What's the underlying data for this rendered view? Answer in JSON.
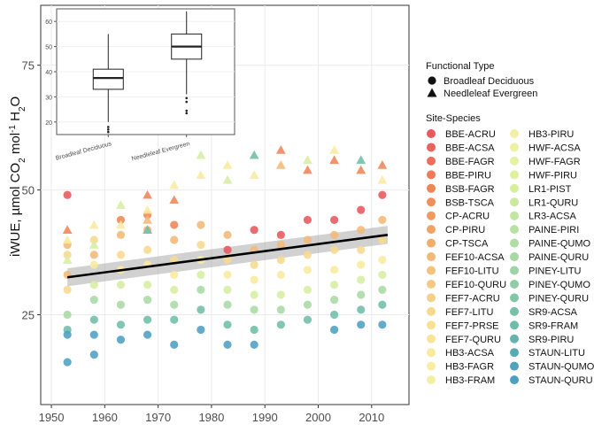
{
  "chart_data": [
    {
      "type": "scatter",
      "title": "",
      "xlabel": "",
      "ylabel_main": "iWUE, µmol CO",
      "ylabel_sub1": "2",
      "ylabel_mid": " mol",
      "ylabel_sup": "-1",
      "ylabel_end": " H",
      "ylabel_sub2": "2",
      "ylabel_tail": "O",
      "xlim": [
        1948,
        2017
      ],
      "ylim": [
        7,
        87
      ],
      "x_ticks": [
        1950,
        1960,
        1970,
        1980,
        1990,
        2000,
        2010
      ],
      "y_ticks": [
        25,
        50,
        75
      ],
      "trend_line": {
        "x": [
          1953,
          2013
        ],
        "y": [
          32.5,
          41.0
        ],
        "ci": 1.8
      },
      "series": [
        {
          "name": "Broadleaf Deciduous",
          "shape": "circle",
          "points": [
            [
              1953,
              49,
              "#e8585c"
            ],
            [
              1953,
              39,
              "#f3b877"
            ],
            [
              1953,
              37,
              "#f7da8f"
            ],
            [
              1953,
              33,
              "#f3b877"
            ],
            [
              1953,
              30,
              "#f7da8f"
            ],
            [
              1953,
              25,
              "#a8d9a4"
            ],
            [
              1953,
              22,
              "#6fbda8"
            ],
            [
              1953,
              21,
              "#4d9fc1"
            ],
            [
              1953,
              15.5,
              "#4d9fc1"
            ],
            [
              1958,
              40,
              "#f7da8f"
            ],
            [
              1958,
              37,
              "#f3b877"
            ],
            [
              1958,
              35,
              "#f9ea9f"
            ],
            [
              1958,
              31,
              "#d6eea0"
            ],
            [
              1958,
              28,
              "#a8d9a4"
            ],
            [
              1958,
              24,
              "#6fbda8"
            ],
            [
              1958,
              21,
              "#4d9fc1"
            ],
            [
              1958,
              17,
              "#4d9fc1"
            ],
            [
              1963,
              44,
              "#ef8556"
            ],
            [
              1963,
              41,
              "#f3b877"
            ],
            [
              1963,
              37,
              "#f7da8f"
            ],
            [
              1963,
              34,
              "#f9ea9f"
            ],
            [
              1963,
              31,
              "#d6eea0"
            ],
            [
              1963,
              27,
              "#a8d9a4"
            ],
            [
              1963,
              23,
              "#6fbda8"
            ],
            [
              1963,
              20,
              "#4d9fc1"
            ],
            [
              1968,
              45,
              "#ef8556"
            ],
            [
              1968,
              42,
              "#f3b877"
            ],
            [
              1968,
              38,
              "#f7da8f"
            ],
            [
              1968,
              35,
              "#f9ea9f"
            ],
            [
              1968,
              31,
              "#d6eea0"
            ],
            [
              1968,
              28,
              "#a8d9a4"
            ],
            [
              1968,
              24,
              "#6fbda8"
            ],
            [
              1968,
              21,
              "#4d9fc1"
            ],
            [
              1973,
              43,
              "#ef8556"
            ],
            [
              1973,
              40,
              "#f3b877"
            ],
            [
              1973,
              36,
              "#f7da8f"
            ],
            [
              1973,
              33,
              "#f9ea9f"
            ],
            [
              1973,
              30,
              "#d6eea0"
            ],
            [
              1973,
              27,
              "#a8d9a4"
            ],
            [
              1973,
              24,
              "#6fbda8"
            ],
            [
              1973,
              19,
              "#4d9fc1"
            ],
            [
              1978,
              43,
              "#f3b877"
            ],
            [
              1978,
              39,
              "#f7da8f"
            ],
            [
              1978,
              36,
              "#f9ea9f"
            ],
            [
              1978,
              33,
              "#d6eea0"
            ],
            [
              1978,
              30,
              "#a8d9a4"
            ],
            [
              1978,
              26,
              "#6fbda8"
            ],
            [
              1978,
              22,
              "#4d9fc1"
            ],
            [
              1983,
              38,
              "#e8585c"
            ],
            [
              1983,
              41,
              "#f3b877"
            ],
            [
              1983,
              36,
              "#f7da8f"
            ],
            [
              1983,
              33,
              "#f9ea9f"
            ],
            [
              1983,
              30,
              "#d6eea0"
            ],
            [
              1983,
              27,
              "#a8d9a4"
            ],
            [
              1983,
              23,
              "#6fbda8"
            ],
            [
              1983,
              19,
              "#4d9fc1"
            ],
            [
              1988,
              42,
              "#e8585c"
            ],
            [
              1988,
              38,
              "#f3b877"
            ],
            [
              1988,
              35,
              "#f7da8f"
            ],
            [
              1988,
              32,
              "#f9ea9f"
            ],
            [
              1988,
              29,
              "#d6eea0"
            ],
            [
              1988,
              26,
              "#a8d9a4"
            ],
            [
              1988,
              22,
              "#6fbda8"
            ],
            [
              1988,
              19,
              "#4d9fc1"
            ],
            [
              1993,
              41,
              "#e8585c"
            ],
            [
              1993,
              39,
              "#f3b877"
            ],
            [
              1993,
              36,
              "#f7da8f"
            ],
            [
              1993,
              33,
              "#f9ea9f"
            ],
            [
              1993,
              29,
              "#d6eea0"
            ],
            [
              1993,
              26,
              "#a8d9a4"
            ],
            [
              1993,
              23,
              "#6fbda8"
            ],
            [
              1998,
              44,
              "#e8585c"
            ],
            [
              1998,
              40,
              "#f3b877"
            ],
            [
              1998,
              37,
              "#f7da8f"
            ],
            [
              1998,
              34,
              "#f9ea9f"
            ],
            [
              1998,
              30,
              "#d6eea0"
            ],
            [
              1998,
              27,
              "#a8d9a4"
            ],
            [
              1998,
              24,
              "#6fbda8"
            ],
            [
              2003,
              44,
              "#e8585c"
            ],
            [
              2003,
              41,
              "#f3b877"
            ],
            [
              2003,
              38,
              "#f7da8f"
            ],
            [
              2003,
              34,
              "#f9ea9f"
            ],
            [
              2003,
              31,
              "#d6eea0"
            ],
            [
              2003,
              28,
              "#a8d9a4"
            ],
            [
              2003,
              25,
              "#6fbda8"
            ],
            [
              2003,
              22,
              "#4d9fc1"
            ],
            [
              2008,
              46,
              "#e8585c"
            ],
            [
              2008,
              42,
              "#f3b877"
            ],
            [
              2008,
              38,
              "#f7da8f"
            ],
            [
              2008,
              35,
              "#f9ea9f"
            ],
            [
              2008,
              32,
              "#d6eea0"
            ],
            [
              2008,
              29,
              "#a8d9a4"
            ],
            [
              2008,
              26,
              "#6fbda8"
            ],
            [
              2008,
              23,
              "#4d9fc1"
            ],
            [
              2012,
              49,
              "#e8585c"
            ],
            [
              2012,
              44,
              "#f3b877"
            ],
            [
              2012,
              40,
              "#f7da8f"
            ],
            [
              2012,
              36,
              "#f9ea9f"
            ],
            [
              2012,
              33,
              "#d6eea0"
            ],
            [
              2012,
              30,
              "#a8d9a4"
            ],
            [
              2012,
              27,
              "#6fbda8"
            ],
            [
              2012,
              23,
              "#4d9fc1"
            ]
          ]
        },
        {
          "name": "Needleleaf Evergreen",
          "shape": "triangle",
          "points": [
            [
              1953,
              42,
              "#ef8556"
            ],
            [
              1953,
              40,
              "#f9ea9f"
            ],
            [
              1953,
              36,
              "#d6eea0"
            ],
            [
              1958,
              43,
              "#f9ea9f"
            ],
            [
              1958,
              39,
              "#d6eea0"
            ],
            [
              1963,
              47,
              "#d6eea0"
            ],
            [
              1963,
              43,
              "#f9ea9f"
            ],
            [
              1968,
              49,
              "#ef8556"
            ],
            [
              1968,
              46,
              "#f9ea9f"
            ],
            [
              1968,
              44,
              "#f3b877"
            ],
            [
              1968,
              42,
              "#6fbda8"
            ],
            [
              1973,
              51,
              "#f9ea9f"
            ],
            [
              1973,
              48,
              "#ef8556"
            ],
            [
              1978,
              57,
              "#d6eea0"
            ],
            [
              1978,
              53,
              "#f9ea9f"
            ],
            [
              1983,
              55,
              "#f9ea9f"
            ],
            [
              1983,
              52,
              "#d6eea0"
            ],
            [
              1988,
              57,
              "#6fbda8"
            ],
            [
              1988,
              53,
              "#f9ea9f"
            ],
            [
              1993,
              58,
              "#ef8556"
            ],
            [
              1993,
              55,
              "#f3b877"
            ],
            [
              1998,
              56,
              "#d6eea0"
            ],
            [
              1998,
              54,
              "#ef8556"
            ],
            [
              2003,
              58,
              "#f9ea9f"
            ],
            [
              2003,
              56,
              "#ef8556"
            ],
            [
              2008,
              56,
              "#6fbda8"
            ],
            [
              2008,
              54,
              "#ef8556"
            ],
            [
              2012,
              55,
              "#ef8556"
            ],
            [
              2012,
              52,
              "#f9ea9f"
            ]
          ]
        }
      ]
    },
    {
      "type": "boxplot",
      "categories": [
        "Broadleaf Deciduous",
        "Needleleaf Evergreen"
      ],
      "ylim": [
        15,
        65
      ],
      "y_ticks": [
        20,
        30,
        40,
        50,
        60
      ],
      "boxes": [
        {
          "min": 20,
          "q1": 33,
          "median": 37.5,
          "q3": 41,
          "max": 55,
          "outliers": [
            18,
            17,
            16
          ]
        },
        {
          "min": 31,
          "q1": 45,
          "median": 50,
          "q3": 55,
          "max": 64,
          "outliers": [
            29.5,
            28,
            24.5,
            23.5
          ]
        }
      ]
    }
  ],
  "legend": {
    "shape_title": "Functional Type",
    "shape_items": [
      {
        "label": "Broadleaf Deciduous",
        "shape": "circle"
      },
      {
        "label": "Needleleaf Evergreen",
        "shape": "triangle"
      }
    ],
    "color_title": "Site-Species",
    "col1": [
      {
        "label": "BBE-ACRU",
        "color": "#e8585c"
      },
      {
        "label": "BBE-ACSA",
        "color": "#ea635c"
      },
      {
        "label": "BBE-FAGR",
        "color": "#ec6f5b"
      },
      {
        "label": "BBE-PIRU",
        "color": "#ee7a5a"
      },
      {
        "label": "BSB-FAGR",
        "color": "#ef8556"
      },
      {
        "label": "BSB-TSCA",
        "color": "#f08f5a"
      },
      {
        "label": "CP-ACRU",
        "color": "#f1995f"
      },
      {
        "label": "CP-PIRU",
        "color": "#f2a364"
      },
      {
        "label": "CP-TSCA",
        "color": "#f3ac6a"
      },
      {
        "label": "FEF10-ACSA",
        "color": "#f3b877"
      },
      {
        "label": "FEF10-LITU",
        "color": "#f4c17f"
      },
      {
        "label": "FEF10-QURU",
        "color": "#f5c985"
      },
      {
        "label": "FEF7-ACRU",
        "color": "#f6d08a"
      },
      {
        "label": "FEF7-LITU",
        "color": "#f7da8f"
      },
      {
        "label": "FEF7-PRSE",
        "color": "#f8e094"
      },
      {
        "label": "FEF7-QURU",
        "color": "#f9e599"
      },
      {
        "label": "HB3-ACSA",
        "color": "#f9ea9f"
      },
      {
        "label": "HB3-FAGR",
        "color": "#f7eda4"
      },
      {
        "label": "HB3-FRAM",
        "color": "#f4efa6"
      }
    ],
    "col2": [
      {
        "label": "HB3-PIRU",
        "color": "#f1f0a6"
      },
      {
        "label": "HWF-ACSA",
        "color": "#ecf1a4"
      },
      {
        "label": "HWF-FAGR",
        "color": "#e6f1a3"
      },
      {
        "label": "HWF-PIRU",
        "color": "#e0f0a2"
      },
      {
        "label": "LR1-PIST",
        "color": "#d6eea0"
      },
      {
        "label": "LR1-QURU",
        "color": "#cde9a0"
      },
      {
        "label": "LR3-ACSA",
        "color": "#c3e5a1"
      },
      {
        "label": "PAINE-PIRI",
        "color": "#b9e1a2"
      },
      {
        "label": "PAINE-QUMO",
        "color": "#b0dda3"
      },
      {
        "label": "PAINE-QURU",
        "color": "#a8d9a4"
      },
      {
        "label": "PINEY-LITU",
        "color": "#9dd3a5"
      },
      {
        "label": "PINEY-QUMO",
        "color": "#90cda6"
      },
      {
        "label": "PINEY-QURU",
        "color": "#83c6a7"
      },
      {
        "label": "SR9-ACSA",
        "color": "#78c0a7"
      },
      {
        "label": "SR9-FRAM",
        "color": "#6fbda8"
      },
      {
        "label": "SR9-PIRU",
        "color": "#64b4ad"
      },
      {
        "label": "STAUN-LITU",
        "color": "#5aaab4"
      },
      {
        "label": "STAUN-QUMO",
        "color": "#52a2bb"
      },
      {
        "label": "STAUN-QURU",
        "color": "#4d9fc1"
      }
    ]
  }
}
